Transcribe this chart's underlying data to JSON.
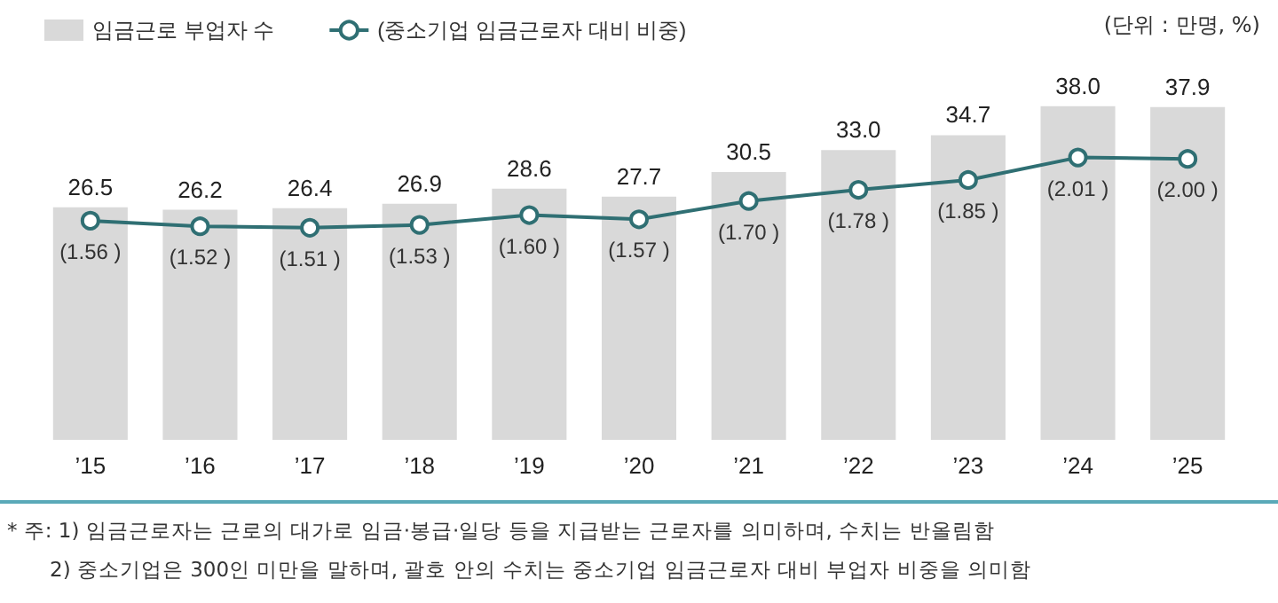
{
  "chart_data": {
    "type": "bar",
    "categories": [
      "’15",
      "’16",
      "’17",
      "’18",
      "’19",
      "’20",
      "’21",
      "’22",
      "’23",
      "’24",
      "’25"
    ],
    "series": [
      {
        "name": "임금근로 부업자 수",
        "color": "#d9d9d9",
        "values": [
          26.5,
          26.2,
          26.4,
          26.9,
          28.6,
          27.7,
          30.5,
          33.0,
          34.7,
          38.0,
          37.9
        ],
        "value_labels": [
          "26.5",
          "26.2",
          "26.4",
          "26.9",
          "28.6",
          "27.7",
          "30.5",
          "33.0",
          "34.7",
          "38.0",
          "37.9"
        ]
      },
      {
        "name": "(중소기업 임금근로자 대비 비중)",
        "type": "line",
        "axis": "y2",
        "color": "#2f6f73",
        "marker": "circle",
        "values": [
          1.56,
          1.52,
          1.51,
          1.53,
          1.6,
          1.57,
          1.7,
          1.78,
          1.85,
          2.01,
          2.0
        ],
        "value_labels": [
          "(1.56 )",
          "(1.52 )",
          "(1.51 )",
          "(1.53 )",
          "(1.60 )",
          "(1.57 )",
          "(1.70 )",
          "(1.78 )",
          "(1.85 )",
          "(2.01 )",
          "(2.00 )"
        ]
      }
    ],
    "legend": "top left",
    "annotations": [
      "(단위 : 만명, %)",
      "* 주: 1) 임금근로자는 근로의 대가로 임금·봉급·일당 등을 지급받는 근로자를 의미하며, 수치는 반올림함",
      "2) 중소기업은 300인 미만을 말하며, 괄호 안의 수치는 중소기업 임금근로자 대비 부업자 비중을 의미함"
    ]
  }
}
